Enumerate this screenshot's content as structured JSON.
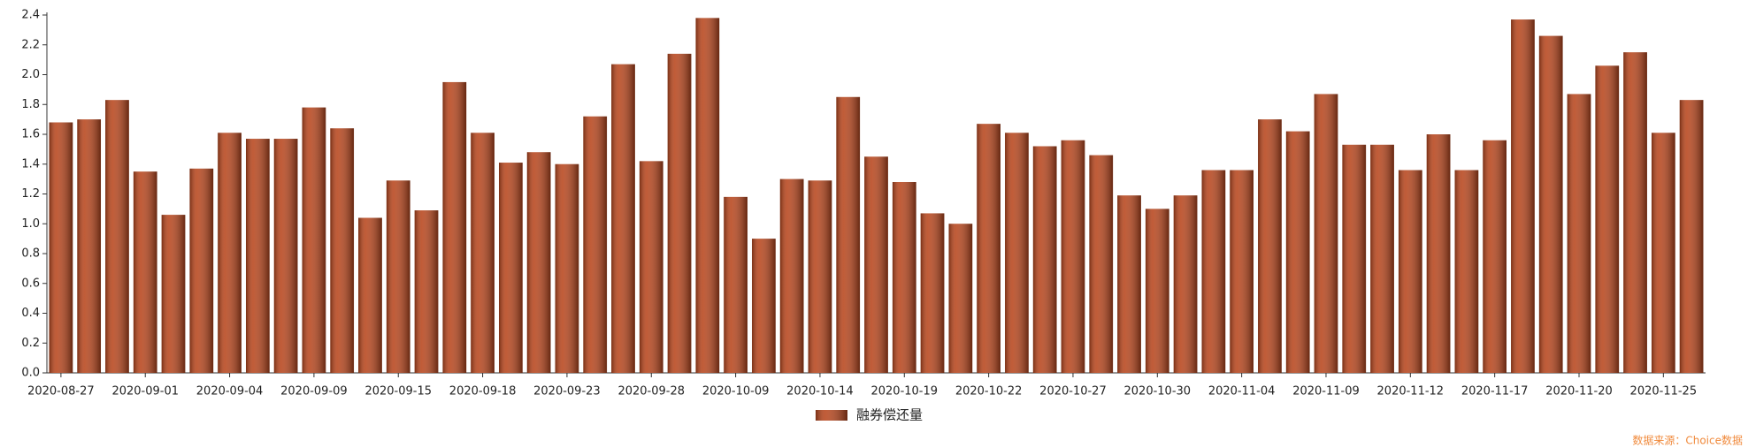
{
  "chart_data": {
    "type": "bar",
    "categories": [
      "2020-08-27",
      null,
      null,
      "2020-09-01",
      null,
      null,
      "2020-09-04",
      null,
      null,
      "2020-09-09",
      null,
      null,
      "2020-09-15",
      null,
      null,
      "2020-09-18",
      null,
      null,
      "2020-09-23",
      null,
      null,
      "2020-09-28",
      null,
      null,
      "2020-10-09",
      null,
      null,
      "2020-10-14",
      null,
      null,
      "2020-10-19",
      null,
      null,
      "2020-10-22",
      null,
      null,
      "2020-10-27",
      null,
      null,
      "2020-10-30",
      null,
      null,
      "2020-11-04",
      null,
      null,
      "2020-11-09",
      null,
      null,
      "2020-11-12",
      null,
      null,
      "2020-11-17",
      null,
      null,
      "2020-11-20",
      null,
      null,
      "2020-11-25",
      null
    ],
    "series": [
      {
        "name": "融券偿还量",
        "color": "#b8461d",
        "values": [
          1.68,
          1.7,
          1.83,
          1.35,
          1.06,
          1.37,
          1.61,
          1.57,
          1.57,
          1.78,
          1.64,
          1.04,
          1.29,
          1.09,
          1.95,
          1.61,
          1.41,
          1.48,
          1.4,
          1.72,
          2.07,
          1.42,
          2.14,
          2.38,
          1.18,
          0.9,
          1.3,
          1.29,
          1.85,
          1.45,
          1.28,
          1.07,
          1.0,
          1.67,
          1.61,
          1.52,
          1.56,
          1.46,
          1.19,
          1.1,
          1.19,
          1.36,
          1.36,
          1.7,
          1.62,
          1.87,
          1.53,
          1.53,
          1.36,
          1.6,
          1.36,
          1.56,
          2.37,
          2.26,
          1.87,
          2.06,
          2.15,
          1.61,
          1.83
        ]
      }
    ],
    "ylim": [
      0,
      2.4
    ],
    "yticks": [
      {
        "value": 0,
        "label": "0.0"
      },
      0.2,
      0.4,
      0.6,
      0.8,
      {
        "value": 1,
        "label": "1.0"
      },
      1.2,
      1.4,
      1.6,
      1.8,
      {
        "value": 2,
        "label": "2.0"
      },
      2.2,
      2.4
    ],
    "grid": false,
    "legend": "bottom",
    "source": "数据来源：Choice数据"
  }
}
